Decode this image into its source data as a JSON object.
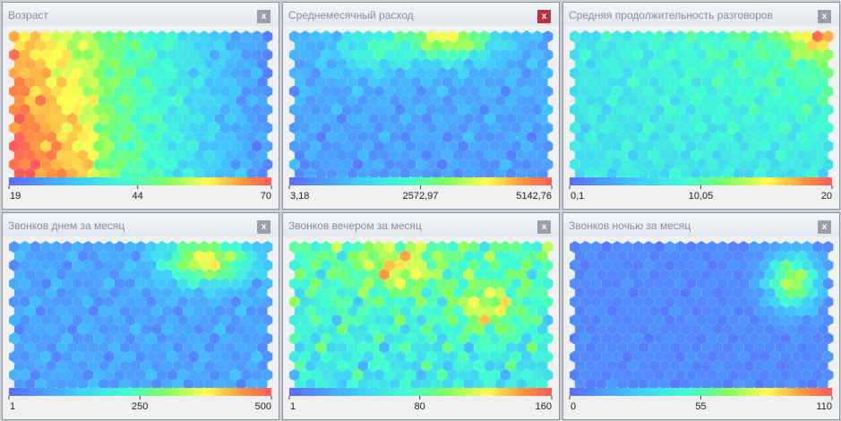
{
  "panels": [
    {
      "title": "Возраст",
      "close": "x",
      "active": false,
      "scale": [
        19,
        44,
        70
      ]
    },
    {
      "title": "Среднемесячный расход",
      "close": "x",
      "active": true,
      "scale": [
        {
          "value": 3.18,
          "label": "3,18"
        },
        {
          "value": 2572.97,
          "label": "2572,97"
        },
        {
          "value": 5142.76,
          "label": "5142,76"
        }
      ]
    },
    {
      "title": "Средняя продолжительность разговоров",
      "close": "x",
      "active": false,
      "scale": [
        {
          "value": 0.1,
          "label": "0,1"
        },
        {
          "value": 10.05,
          "label": "10,05"
        },
        20
      ]
    },
    {
      "title": "Звонков днем за месяц",
      "close": "x",
      "active": false,
      "scale": [
        1,
        250,
        500
      ]
    },
    {
      "title": "Звонков вечером за месяц",
      "close": "x",
      "active": false,
      "scale": [
        1,
        80,
        160
      ]
    },
    {
      "title": "Звонков ночью за месяц",
      "close": "x",
      "active": false,
      "scale": [
        0,
        55,
        110
      ]
    }
  ]
}
